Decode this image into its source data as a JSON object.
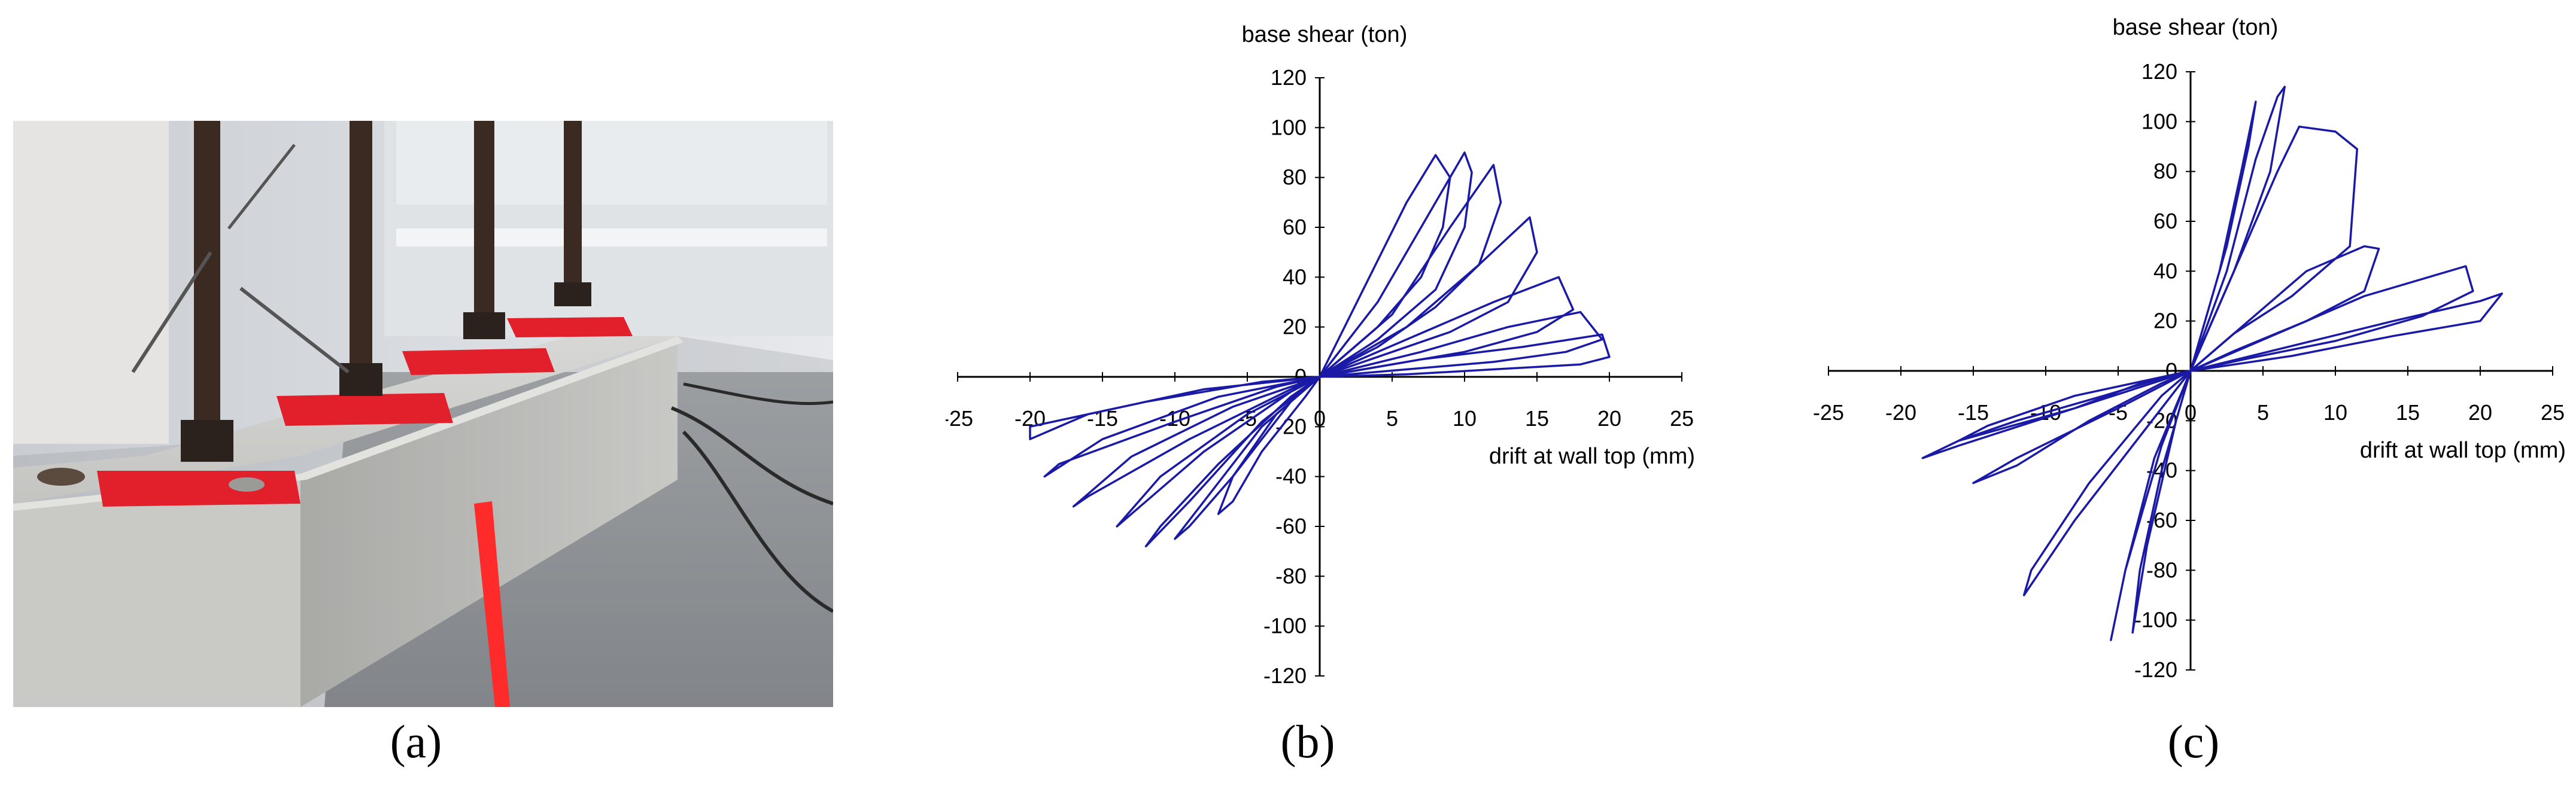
{
  "panels": {
    "a": {
      "label": "(a)"
    },
    "b": {
      "label": "(b)"
    },
    "c": {
      "label": "(c)"
    }
  },
  "chart_data": [
    {
      "type": "line",
      "ylabel": "base shear (ton)",
      "xlabel": "drift at wall top (mm)",
      "xlim": [
        -25,
        25
      ],
      "ylim": [
        -120,
        120
      ],
      "x_ticks": [
        -25,
        -20,
        -15,
        -10,
        -5,
        0,
        5,
        10,
        15,
        20,
        25
      ],
      "y_ticks": [
        -120,
        -100,
        -80,
        -60,
        -40,
        -20,
        20,
        40,
        60,
        80,
        100,
        120
      ],
      "line_color": "#1a1aa6",
      "grid": false,
      "series": [
        {
          "x": [
            0,
            3,
            6,
            8,
            9,
            8.5,
            7,
            4,
            0,
            -3,
            -6,
            -7,
            -6,
            -4,
            -1,
            0
          ],
          "y": [
            0,
            35,
            70,
            89,
            80,
            60,
            40,
            20,
            0,
            -15,
            -40,
            -55,
            -50,
            -30,
            -8,
            0
          ]
        },
        {
          "x": [
            0,
            4,
            8,
            10,
            10.5,
            10,
            8,
            4,
            0,
            -4,
            -8,
            -10,
            -9,
            -6,
            -2,
            0
          ],
          "y": [
            0,
            30,
            70,
            90,
            82,
            60,
            35,
            15,
            0,
            -20,
            -50,
            -65,
            -60,
            -40,
            -10,
            0
          ]
        },
        {
          "x": [
            0,
            5,
            9,
            12,
            12.5,
            11,
            8,
            4,
            0,
            -4,
            -9,
            -12,
            -11,
            -7,
            -2,
            0
          ],
          "y": [
            0,
            25,
            60,
            85,
            70,
            45,
            28,
            12,
            0,
            -18,
            -50,
            -68,
            -60,
            -35,
            -8,
            0
          ]
        },
        {
          "x": [
            0,
            6,
            11,
            14.5,
            15,
            13,
            9,
            4,
            0,
            -5,
            -11,
            -14,
            -13,
            -8,
            -2,
            0
          ],
          "y": [
            0,
            20,
            45,
            64,
            50,
            30,
            18,
            8,
            0,
            -15,
            -40,
            -60,
            -55,
            -30,
            -6,
            0
          ]
        },
        {
          "x": [
            0,
            6,
            12,
            16.5,
            17.5,
            15,
            10,
            5,
            0,
            -6,
            -13,
            -17,
            -16,
            -9,
            -2,
            0
          ],
          "y": [
            0,
            15,
            30,
            40,
            27,
            18,
            10,
            5,
            0,
            -12,
            -32,
            -52,
            -48,
            -25,
            -5,
            0
          ]
        },
        {
          "x": [
            0,
            7,
            13,
            18,
            19.5,
            17,
            12,
            6,
            0,
            -7,
            -15,
            -19,
            -18,
            -10,
            -3,
            0
          ],
          "y": [
            0,
            10,
            20,
            26,
            15,
            10,
            6,
            3,
            0,
            -8,
            -25,
            -40,
            -35,
            -18,
            -4,
            0
          ]
        },
        {
          "x": [
            0,
            7,
            14,
            19.5,
            20,
            18,
            12,
            6,
            0,
            -8,
            -16,
            -20,
            -20,
            -12,
            -4,
            0
          ],
          "y": [
            0,
            7,
            12,
            17,
            8,
            5,
            3,
            1,
            0,
            -5,
            -15,
            -25,
            -20,
            -10,
            -2,
            0
          ]
        }
      ]
    },
    {
      "type": "line",
      "ylabel": "base shear (ton)",
      "xlabel": "drift at wall top (mm)",
      "xlim": [
        -25,
        25
      ],
      "ylim": [
        -120,
        120
      ],
      "x_ticks": [
        -25,
        -20,
        -15,
        -10,
        -5,
        0,
        5,
        10,
        15,
        20,
        25
      ],
      "y_ticks": [
        -120,
        -100,
        -80,
        -60,
        -40,
        -20,
        20,
        40,
        60,
        80,
        100,
        120
      ],
      "line_color": "#1a1aa6",
      "grid": false,
      "series": [
        {
          "x": [
            0,
            2,
            3.5,
            4.5,
            4,
            2.5,
            0,
            -2,
            -3.5,
            -4,
            -3,
            -1,
            0
          ],
          "y": [
            0,
            40,
            80,
            108,
            90,
            50,
            0,
            -40,
            -80,
            -105,
            -70,
            -20,
            0
          ]
        },
        {
          "x": [
            0,
            2.5,
            4.5,
            6,
            6.5,
            5.5,
            3,
            0,
            -2.5,
            -4.5,
            -5.5,
            -4.5,
            -2,
            0
          ],
          "y": [
            0,
            40,
            85,
            110,
            114,
            80,
            40,
            0,
            -35,
            -80,
            -108,
            -80,
            -30,
            0
          ]
        },
        {
          "x": [
            0,
            3,
            6,
            7.5,
            10,
            11.5,
            11,
            7,
            3,
            0,
            -4,
            -8,
            -11.5,
            -11,
            -7,
            -2,
            0
          ],
          "y": [
            0,
            40,
            80,
            98,
            96,
            89,
            50,
            30,
            15,
            0,
            -30,
            -60,
            -90,
            -80,
            -45,
            -10,
            0
          ]
        },
        {
          "x": [
            0,
            4,
            8,
            12,
            13,
            12,
            8,
            3,
            0,
            -5,
            -12,
            -15,
            -12,
            -7,
            -2,
            0
          ],
          "y": [
            0,
            20,
            40,
            50,
            49,
            32,
            20,
            8,
            0,
            -15,
            -35,
            -45,
            -38,
            -20,
            -5,
            0
          ]
        },
        {
          "x": [
            0,
            6,
            12,
            19,
            19.5,
            16,
            10,
            4,
            0,
            -8,
            -16,
            -18.5,
            -16,
            -8,
            -3,
            0
          ],
          "y": [
            0,
            15,
            30,
            42,
            32,
            22,
            12,
            5,
            0,
            -15,
            -30,
            -35,
            -28,
            -15,
            -4,
            0
          ]
        },
        {
          "x": [
            0,
            7,
            14,
            20,
            21.5,
            20,
            14,
            7,
            0,
            -8,
            -14,
            -16,
            -12,
            -6,
            -2,
            0
          ],
          "y": [
            0,
            10,
            20,
            28,
            31,
            20,
            14,
            6,
            0,
            -10,
            -22,
            -28,
            -20,
            -10,
            -3,
            0
          ]
        }
      ]
    }
  ]
}
